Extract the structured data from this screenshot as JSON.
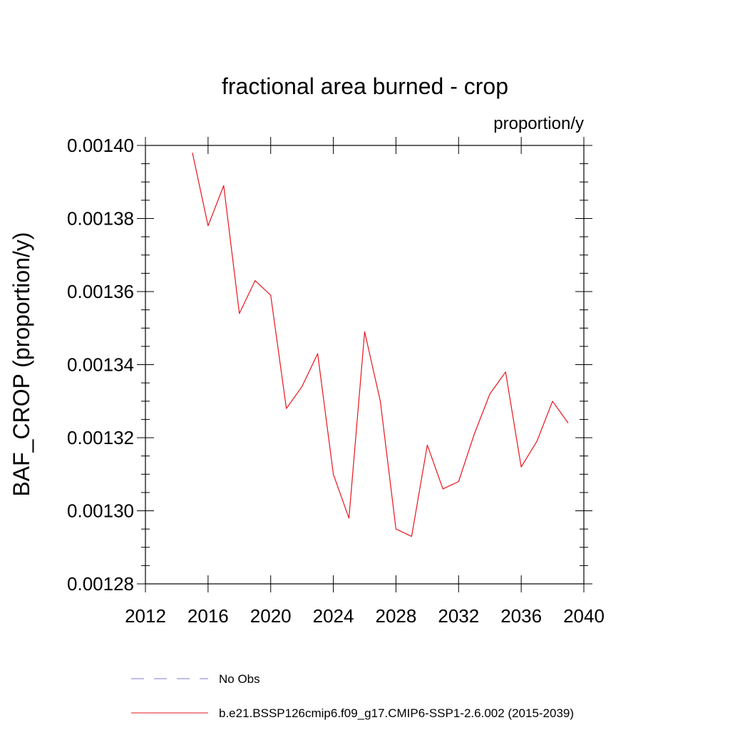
{
  "chart_data": {
    "type": "line",
    "title": "fractional area burned - crop",
    "units_label": "proportion/y",
    "ylabel": "BAF_CROP  (proportion/y)",
    "xlabel": "",
    "xlim": [
      2012,
      2040
    ],
    "ylim": [
      0.00128,
      0.0014
    ],
    "x_ticks": [
      2012,
      2016,
      2020,
      2024,
      2028,
      2032,
      2036,
      2040
    ],
    "x_tick_labels": [
      "2012",
      "2016",
      "2020",
      "2024",
      "2028",
      "2032",
      "2036",
      "2040"
    ],
    "y_ticks": [
      0.00128,
      0.0013,
      0.00132,
      0.00134,
      0.00136,
      0.00138,
      0.0014
    ],
    "y_tick_labels": [
      "0.00128",
      "0.00130",
      "0.00132",
      "0.00134",
      "0.00136",
      "0.00138",
      "0.00140"
    ],
    "grid": false,
    "series": [
      {
        "name": "b.e21.BSSP126cmip6.f09_g17.CMIP6-SSP1-2.6.002 (2015-2039)",
        "color": "#e8141c",
        "style": "solid",
        "x": [
          2015,
          2016,
          2017,
          2018,
          2019,
          2020,
          2021,
          2022,
          2023,
          2024,
          2025,
          2026,
          2027,
          2028,
          2029,
          2030,
          2031,
          2032,
          2033,
          2034,
          2035,
          2036,
          2037,
          2038,
          2039
        ],
        "y": [
          0.001398,
          0.001378,
          0.001389,
          0.001354,
          0.001363,
          0.001359,
          0.001328,
          0.001334,
          0.001343,
          0.00131,
          0.001298,
          0.001349,
          0.00133,
          0.001295,
          0.001293,
          0.001318,
          0.001306,
          0.001308,
          0.001321,
          0.001332,
          0.001338,
          0.001312,
          0.001319,
          0.00133,
          0.001324
        ]
      }
    ],
    "legend": {
      "placement": "bottom",
      "entries": [
        {
          "label": "No Obs",
          "color": "#7b7bc8",
          "style": "dashed"
        },
        {
          "label": "b.e21.BSSP126cmip6.f09_g17.CMIP6-SSP1-2.6.002 (2015-2039)",
          "color": "#e8141c",
          "style": "solid"
        }
      ]
    }
  }
}
